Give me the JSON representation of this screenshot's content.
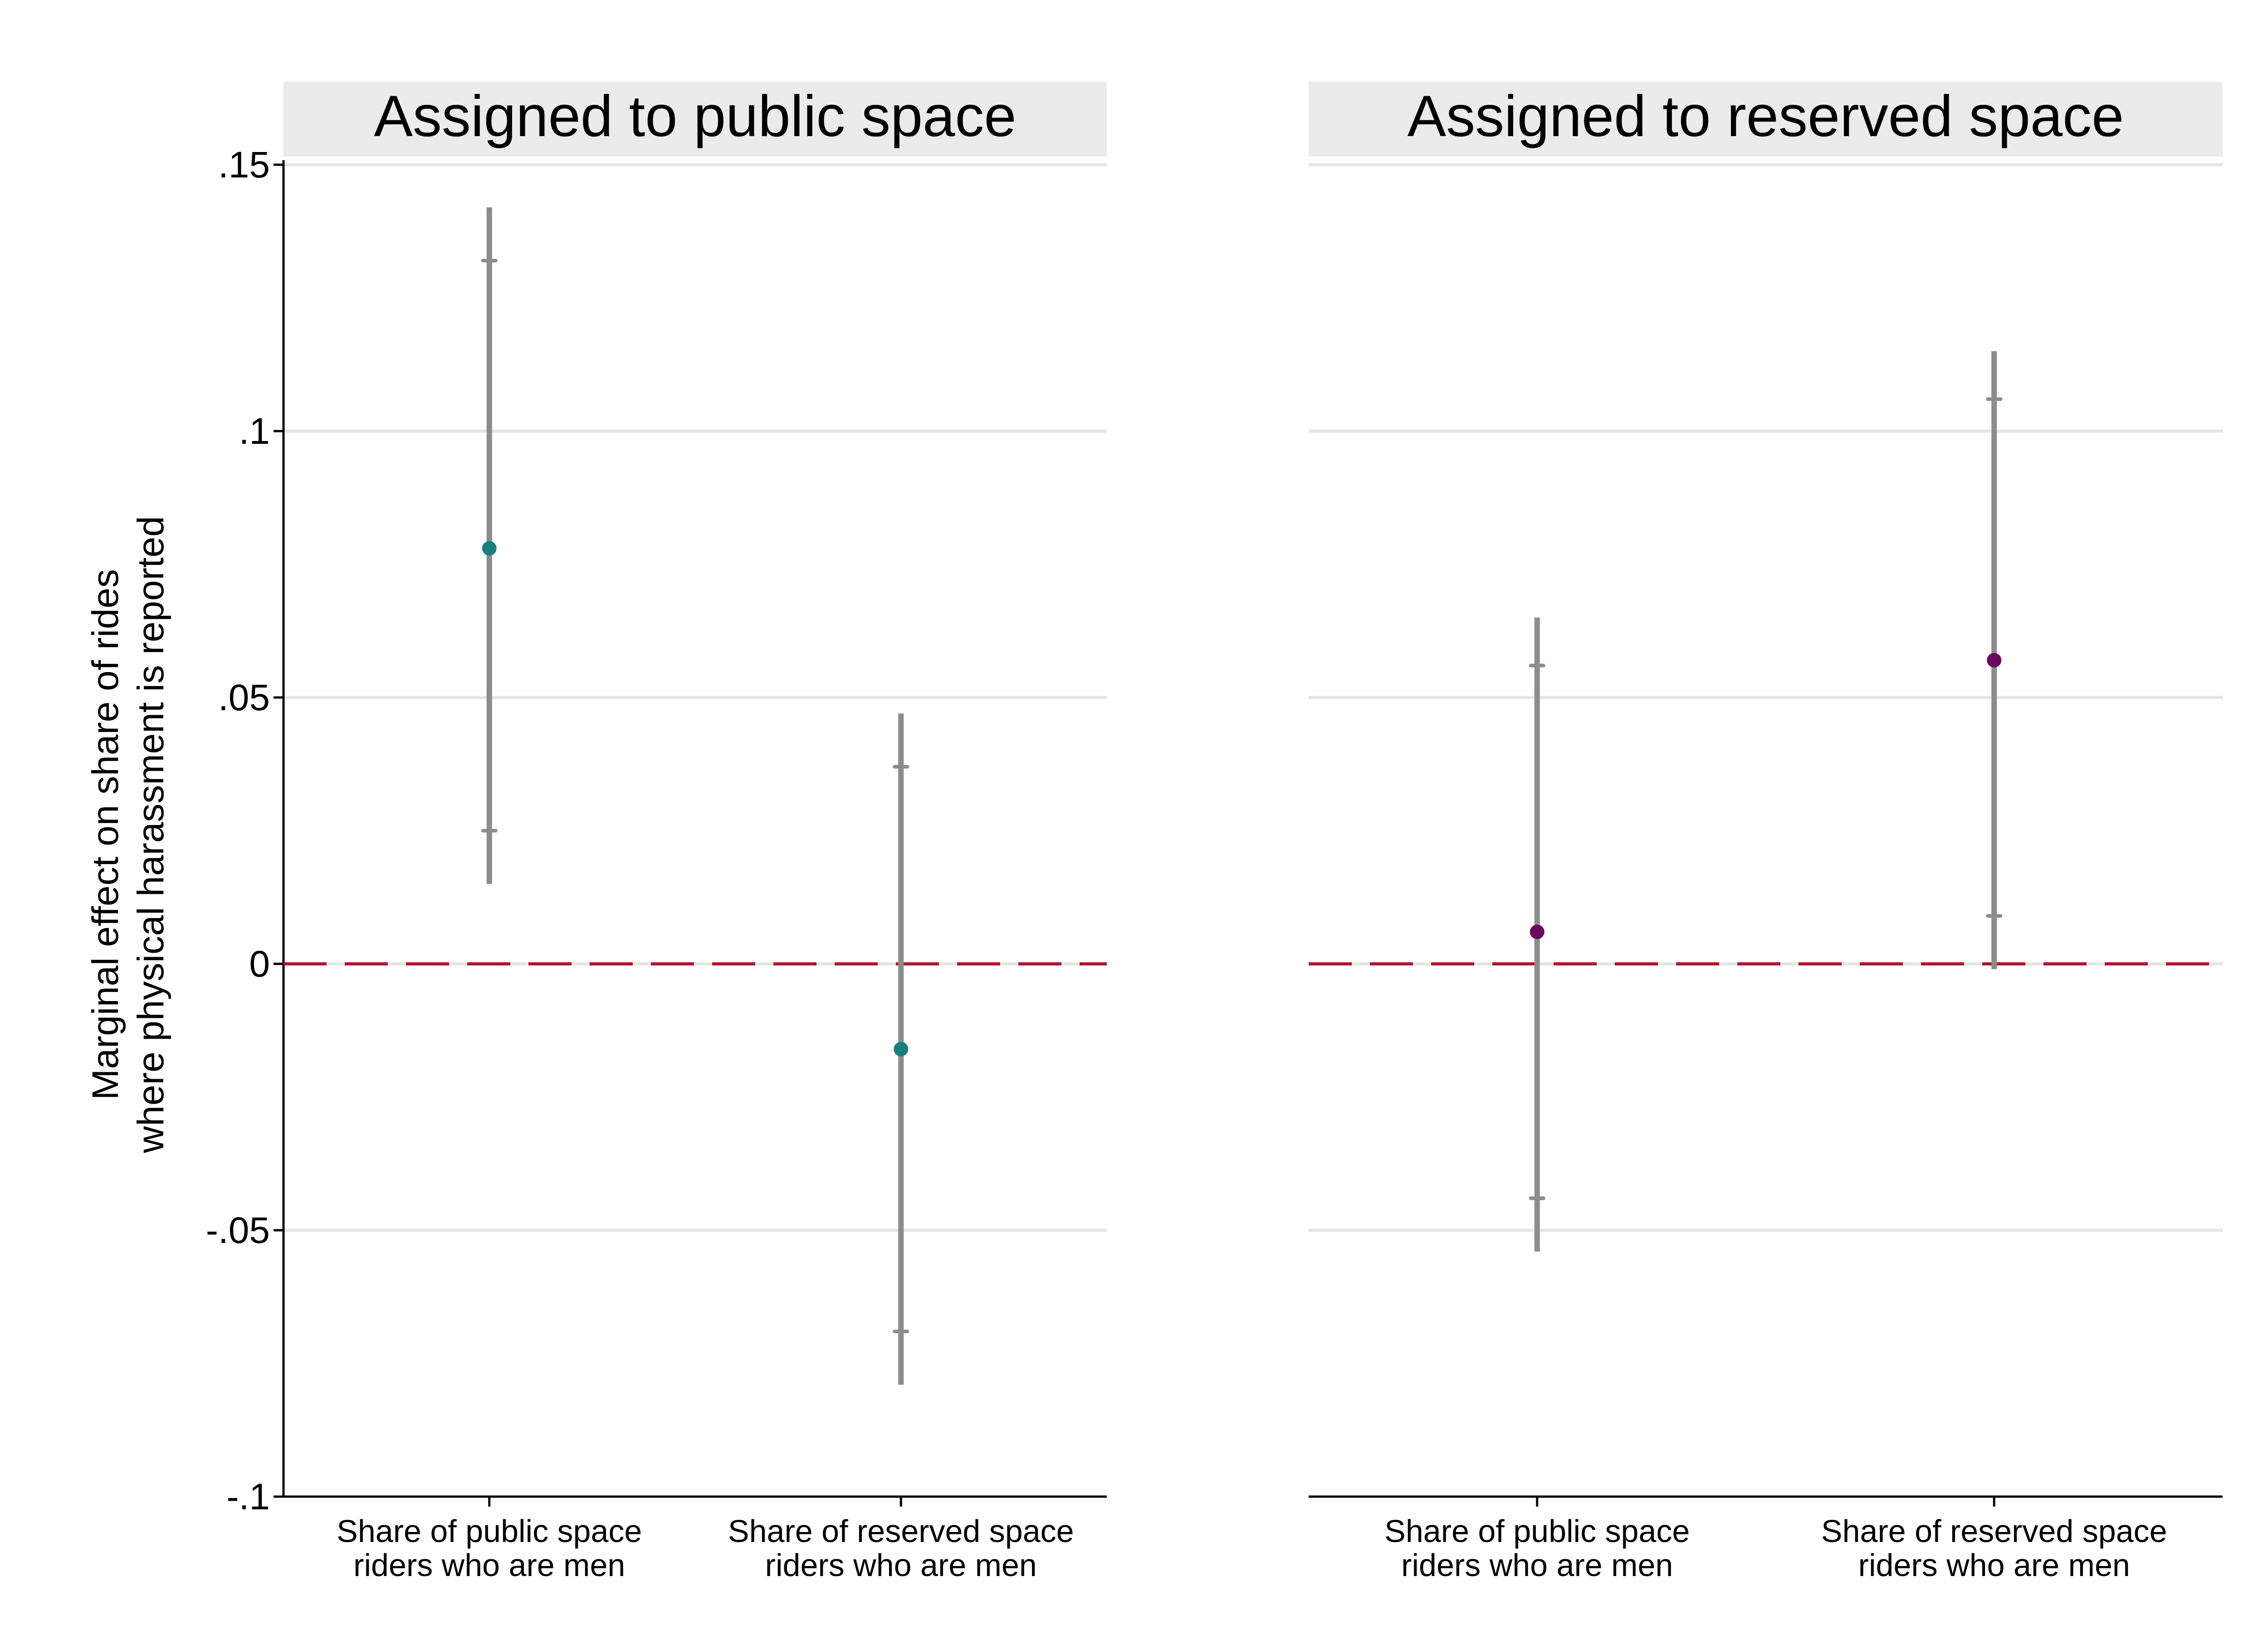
{
  "chart_data": {
    "type": "scatter",
    "ylabel": [
      "Marginal effect on share of rides",
      "where physical harassment is reported"
    ],
    "ylim": [
      -0.1,
      0.15
    ],
    "yticks": [
      {
        "value": 0.15,
        "label": ".15"
      },
      {
        "value": 0.1,
        "label": ".1"
      },
      {
        "value": 0.05,
        "label": ".05"
      },
      {
        "value": 0,
        "label": "0"
      },
      {
        "value": -0.05,
        "label": "-.05"
      },
      {
        "value": -0.1,
        "label": "-.1"
      }
    ],
    "grid": true,
    "reference_line": {
      "y": 0,
      "color": "#b0132d",
      "style": "dashed"
    },
    "ci_color": "#8c8c8c",
    "panels": [
      {
        "title": "Assigned to public space",
        "point_color": "#1a7f7a",
        "categories": [
          [
            "Share of public space",
            "riders who are men"
          ],
          [
            "Share of reserved space",
            "riders who are men"
          ]
        ],
        "estimates": [
          0.078,
          -0.016
        ],
        "ci90": [
          [
            0.025,
            0.132
          ],
          [
            -0.069,
            0.037
          ]
        ],
        "ci95": [
          [
            0.015,
            0.142
          ],
          [
            -0.079,
            0.047
          ]
        ]
      },
      {
        "title": "Assigned to reserved space",
        "point_color": "#6a0a5e",
        "categories": [
          [
            "Share of public space",
            "riders who are men"
          ],
          [
            "Share of reserved space",
            "riders who are men"
          ]
        ],
        "estimates": [
          0.006,
          0.057
        ],
        "ci90": [
          [
            -0.044,
            0.056
          ],
          [
            0.009,
            0.106
          ]
        ],
        "ci95": [
          [
            -0.054,
            0.065
          ],
          [
            -0.001,
            0.115
          ]
        ]
      }
    ]
  }
}
